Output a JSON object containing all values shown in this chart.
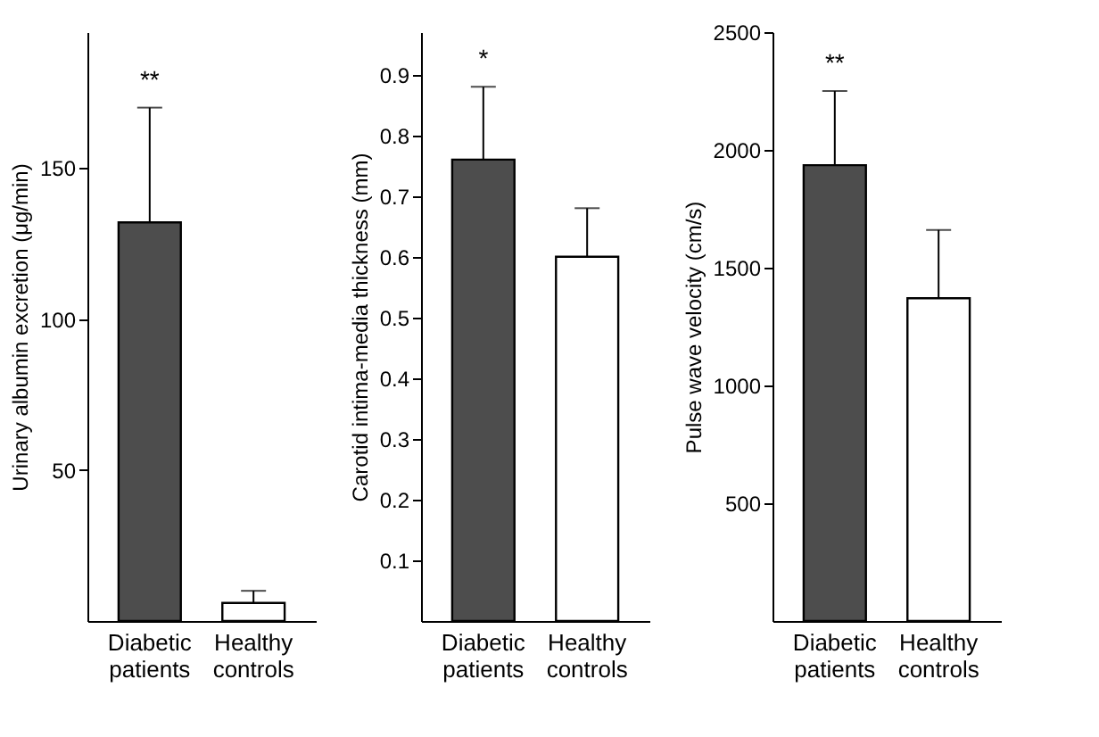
{
  "chart_data": [
    {
      "type": "bar",
      "ylabel": "Urinary albumin excretion (μg/min)",
      "categories": [
        "Diabetic patients",
        "Healthy controls"
      ],
      "values": [
        132,
        6
      ],
      "colors": [
        "#4d4d4d",
        "#ffffff"
      ],
      "errors": [
        [
          132,
          170
        ],
        [
          6,
          10
        ]
      ],
      "ylim": [
        0,
        195
      ],
      "yticks": [
        50,
        100,
        150
      ],
      "grid": false,
      "annotations": [
        {
          "text": "**",
          "x": "Diabetic patients",
          "y": 170
        }
      ]
    },
    {
      "type": "bar",
      "ylabel": "Carotid intima-media thickness (mm)",
      "categories": [
        "Diabetic patients",
        "Healthy controls"
      ],
      "values": [
        0.76,
        0.6
      ],
      "colors": [
        "#4d4d4d",
        "#ffffff"
      ],
      "errors": [
        [
          0.76,
          0.88
        ],
        [
          0.6,
          0.68
        ]
      ],
      "ylim": [
        0,
        0.97
      ],
      "yticks": [
        0.1,
        0.2,
        0.3,
        0.4,
        0.5,
        0.6,
        0.7,
        0.8,
        0.9
      ],
      "grid": false,
      "annotations": [
        {
          "text": "*",
          "x": "Diabetic patients",
          "y": 0.88
        }
      ]
    },
    {
      "type": "bar",
      "ylabel": "Pulse wave velocity (cm/s)",
      "categories": [
        "Diabetic patients",
        "Healthy controls"
      ],
      "values": [
        1935,
        1370
      ],
      "colors": [
        "#4d4d4d",
        "#ffffff"
      ],
      "errors": [
        [
          1935,
          2250
        ],
        [
          1370,
          1660
        ]
      ],
      "ylim": [
        0,
        2500
      ],
      "yticks": [
        500,
        1000,
        1500,
        2000,
        2500
      ],
      "grid": false,
      "annotations": [
        {
          "text": "**",
          "x": "Diabetic patients",
          "y": 2250
        }
      ]
    }
  ]
}
